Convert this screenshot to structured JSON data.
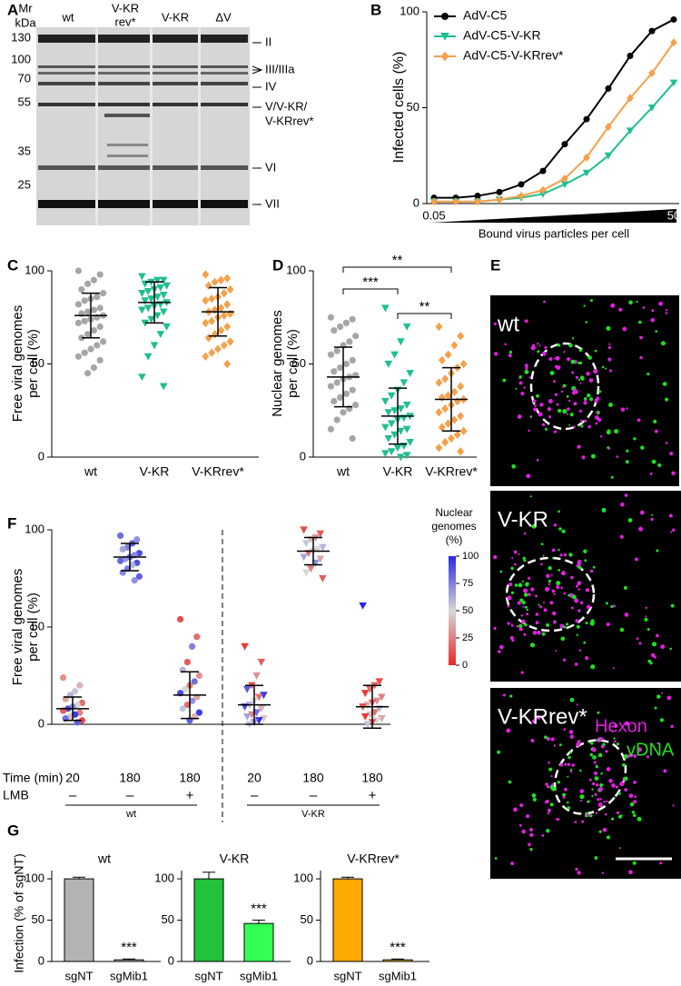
{
  "panel_labels": [
    "A",
    "B",
    "C",
    "D",
    "E",
    "F",
    "G"
  ],
  "gel": {
    "mr_label": [
      "Mr",
      "kDa"
    ],
    "lanes": [
      [
        "wt"
      ],
      [
        "V-KR",
        "rev*"
      ],
      [
        "V-KR"
      ],
      [
        "ΔV"
      ]
    ],
    "markers": [
      "130",
      "100",
      "70",
      "55",
      "35",
      "25"
    ],
    "bands": [
      "II",
      "III/IIIa",
      "IV",
      [
        "V/V-KR/",
        "V-KRrev*"
      ],
      "VI",
      "VII"
    ]
  },
  "images": [
    {
      "label": "wt"
    },
    {
      "label": "V-KR"
    },
    {
      "label": "V-KRrev*",
      "channels": [
        "Hexon",
        "vDNA"
      ]
    }
  ],
  "chart_data": [
    {
      "type": "line",
      "ylabel": "Infected cells (%)",
      "xlabel": "Bound virus particles per cell",
      "categories": [
        "0.05",
        null,
        null,
        null,
        null,
        null,
        null,
        null,
        null,
        null,
        null,
        "50"
      ],
      "ylim": [
        0,
        100
      ],
      "yticks": [
        0,
        50,
        100
      ],
      "series": [
        {
          "name": "AdV-C5",
          "color": "#000000",
          "marker": "circle",
          "values": [
            3,
            3,
            4,
            6,
            10,
            17,
            31,
            44,
            60,
            77,
            90,
            96
          ]
        },
        {
          "name": "AdV-C5-V-KR",
          "color": "#1fbf8f",
          "marker": "triangle",
          "values": [
            1,
            1,
            1,
            2,
            3,
            5,
            10,
            16,
            25,
            38,
            50,
            63
          ]
        },
        {
          "name": "AdV-C5-V-KRrev*",
          "color": "#f5a04a",
          "marker": "diamond",
          "values": [
            1,
            1,
            1,
            2,
            4,
            7,
            13,
            24,
            40,
            55,
            68,
            84
          ]
        }
      ]
    },
    {
      "type": "dot",
      "ylabel": [
        "Free viral genomes",
        "per cell (%)"
      ],
      "ylim": [
        0,
        100
      ],
      "yticks": [
        0,
        50,
        100
      ],
      "groups": [
        {
          "name": "wt",
          "color": "#a6a6a6",
          "marker": "circle",
          "mean": 76,
          "sd": 12,
          "values": [
            100,
            98,
            95,
            93,
            90,
            88,
            86,
            85,
            84,
            82,
            80,
            79,
            78,
            77,
            76,
            75,
            74,
            73,
            72,
            70,
            68,
            66,
            64,
            62,
            60,
            58,
            56,
            54,
            52,
            48,
            45
          ]
        },
        {
          "name": "V-KR",
          "color": "#1fbf8f",
          "marker": "triangle",
          "mean": 83,
          "sd": 11,
          "values": [
            97,
            95,
            95,
            94,
            93,
            92,
            91,
            90,
            89,
            88,
            87,
            86,
            85,
            84,
            83,
            82,
            81,
            80,
            79,
            78,
            76,
            74,
            72,
            70,
            66,
            60,
            54,
            43,
            38
          ]
        },
        {
          "name": "V-KRrev*",
          "color": "#f5a04a",
          "marker": "diamond",
          "mean": 78,
          "sd": 13,
          "values": [
            98,
            96,
            95,
            94,
            92,
            90,
            88,
            86,
            85,
            84,
            82,
            80,
            79,
            78,
            77,
            76,
            75,
            73,
            72,
            70,
            68,
            66,
            64,
            62,
            60,
            58,
            56,
            54,
            50
          ]
        }
      ]
    },
    {
      "type": "dot",
      "ylabel": [
        "Nuclear genomes",
        "per cell (%)"
      ],
      "ylim": [
        0,
        100
      ],
      "yticks": [
        0,
        50,
        100
      ],
      "groups": [
        {
          "name": "wt",
          "color": "#a6a6a6",
          "marker": "circle",
          "mean": 43,
          "sd": 16,
          "values": [
            75,
            74,
            72,
            70,
            68,
            65,
            62,
            60,
            57,
            55,
            52,
            50,
            48,
            46,
            44,
            43,
            42,
            40,
            38,
            36,
            34,
            32,
            30,
            28,
            26,
            24,
            20,
            15,
            10
          ]
        },
        {
          "name": "V-KR",
          "color": "#1fbf8f",
          "marker": "triangle",
          "mean": 22,
          "sd": 15,
          "values": [
            80,
            70,
            62,
            55,
            50,
            45,
            40,
            36,
            33,
            30,
            28,
            26,
            25,
            24,
            22,
            21,
            20,
            18,
            16,
            15,
            14,
            12,
            10,
            8,
            6,
            5,
            3,
            2,
            1,
            0
          ]
        },
        {
          "name": "V-KRrev*",
          "color": "#f5a04a",
          "marker": "diamond",
          "mean": 31,
          "sd": 17,
          "values": [
            70,
            65,
            60,
            55,
            52,
            50,
            48,
            45,
            42,
            40,
            38,
            35,
            33,
            32,
            31,
            30,
            28,
            26,
            24,
            22,
            20,
            18,
            16,
            14,
            12,
            10,
            8,
            5,
            3
          ]
        }
      ],
      "comparisons": [
        {
          "pair": [
            0,
            1
          ],
          "label": "***"
        },
        {
          "pair": [
            1,
            2
          ],
          "label": "**"
        },
        {
          "pair": [
            0,
            2
          ],
          "label": "**"
        }
      ]
    },
    {
      "type": "dot",
      "ylabel": [
        "Free viral genomes",
        "per cell (%)"
      ],
      "ylim": [
        0,
        100
      ],
      "yticks": [
        0,
        50,
        100
      ],
      "time_label": "Time (min)",
      "lmb_label": "LMB",
      "colorbar": {
        "title": [
          "Nuclear",
          "genomes",
          "(%)"
        ],
        "lim": [
          0,
          100
        ],
        "ticks": [
          0,
          25,
          50,
          75,
          100
        ]
      },
      "blocks": [
        {
          "name": "wt",
          "marker": "circle",
          "groups": [
            0,
            1,
            2
          ]
        },
        {
          "name": "V-KR",
          "marker": "triangle",
          "groups": [
            3,
            4,
            5
          ]
        }
      ],
      "groups": [
        {
          "time": "20",
          "lmb": "–",
          "mean": 8,
          "sd": 6,
          "values": [
            24,
            20,
            17,
            15,
            13,
            11,
            10,
            9,
            8,
            7,
            6,
            5,
            4,
            3,
            2,
            1
          ],
          "nuclear": [
            30,
            40,
            55,
            60,
            35,
            20,
            50,
            70,
            90,
            15,
            25,
            95,
            45,
            80,
            10,
            85
          ]
        },
        {
          "time": "180",
          "lmb": "–",
          "mean": 86,
          "sd": 7,
          "values": [
            97,
            95,
            93,
            91,
            90,
            88,
            87,
            86,
            85,
            84,
            83,
            82,
            80,
            78,
            76,
            74
          ],
          "nuclear": [
            80,
            70,
            85,
            75,
            65,
            90,
            72,
            78,
            68,
            82,
            88,
            60,
            77,
            73,
            85,
            70
          ]
        },
        {
          "time": "180",
          "lmb": "+",
          "mean": 15,
          "sd": 12,
          "values": [
            54,
            45,
            40,
            32,
            28,
            25,
            22,
            20,
            18,
            16,
            14,
            12,
            10,
            8,
            6,
            4,
            2
          ],
          "nuclear": [
            10,
            20,
            75,
            15,
            60,
            30,
            80,
            25,
            50,
            90,
            35,
            70,
            20,
            55,
            95,
            40,
            85
          ]
        },
        {
          "time": "20",
          "lmb": "–",
          "mean": 10,
          "sd": 10,
          "values": [
            40,
            32,
            25,
            20,
            18,
            15,
            14,
            12,
            10,
            9,
            8,
            6,
            5,
            4,
            3,
            2,
            1,
            0
          ],
          "nuclear": [
            5,
            15,
            30,
            10,
            85,
            95,
            20,
            50,
            60,
            90,
            40,
            80,
            25,
            65,
            45,
            100,
            70,
            55
          ]
        },
        {
          "time": "180",
          "lmb": "–",
          "mean": 89,
          "sd": 7,
          "values": [
            100,
            98,
            96,
            95,
            93,
            91,
            90,
            89,
            88,
            86,
            85,
            83,
            80,
            78,
            75
          ],
          "nuclear": [
            10,
            15,
            30,
            40,
            55,
            60,
            50,
            45,
            20,
            65,
            35,
            70,
            25,
            50,
            15
          ]
        },
        {
          "time": "180",
          "lmb": "+",
          "mean": 9,
          "sd": 11,
          "values": [
            61,
            22,
            20,
            18,
            16,
            14,
            12,
            11,
            10,
            9,
            8,
            6,
            5,
            4,
            3,
            2,
            1,
            0
          ],
          "nuclear": [
            100,
            10,
            15,
            20,
            5,
            25,
            30,
            15,
            40,
            10,
            60,
            20,
            45,
            5,
            35,
            50,
            10,
            55
          ]
        }
      ]
    },
    {
      "type": "bar",
      "title": "wt",
      "ylabel": "Infection (% of sgNT)",
      "categories": [
        "sgNT",
        "sgMib1"
      ],
      "values": [
        100,
        2
      ],
      "errors": [
        2,
        1
      ],
      "annotations": [
        null,
        "***"
      ],
      "colors": [
        "#b3b3b3",
        "#cccccc"
      ],
      "ylim": [
        0,
        110
      ],
      "yticks": [
        0,
        50,
        100
      ]
    },
    {
      "type": "bar",
      "title": "V-KR",
      "categories": [
        "sgNT",
        "sgMib1"
      ],
      "values": [
        100,
        46
      ],
      "errors": [
        8,
        4
      ],
      "annotations": [
        null,
        "***"
      ],
      "colors": [
        "#22c33a",
        "#33ff55"
      ],
      "ylim": [
        0,
        110
      ],
      "yticks": [
        0,
        50,
        100
      ]
    },
    {
      "type": "bar",
      "title": "V-KRrev*",
      "categories": [
        "sgNT",
        "sgMib1"
      ],
      "values": [
        100,
        2
      ],
      "errors": [
        2,
        1
      ],
      "annotations": [
        null,
        "***"
      ],
      "colors": [
        "#ffaa00",
        "#ffcc44"
      ],
      "ylim": [
        0,
        110
      ],
      "yticks": [
        0,
        50,
        100
      ]
    }
  ]
}
